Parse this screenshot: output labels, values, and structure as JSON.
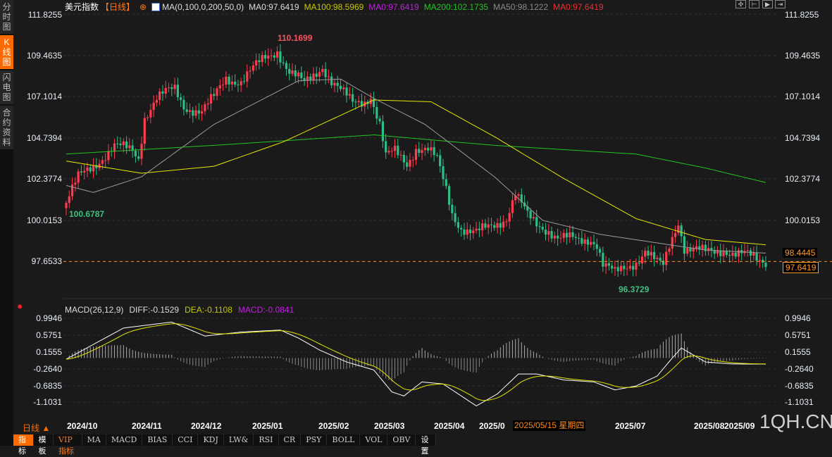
{
  "sidebar": {
    "tabs": [
      {
        "label": "分时图"
      },
      {
        "label": "K线图"
      },
      {
        "label": "闪电图"
      },
      {
        "label": "合约资料"
      }
    ]
  },
  "header": {
    "title": "美元指数",
    "period": "【日线】",
    "ma_params": "MA(0,100,0,200,50,0)",
    "ma0a": "MA0:97.6419",
    "ma100": "MA100:98.5969",
    "ma0b": "MA0:97.6419",
    "ma200": "MA200:102.1735",
    "ma50": "MA50:98.1222",
    "ma0c": "MA0:97.6419"
  },
  "colors": {
    "up": "#ff3b4e",
    "down": "#2ebd85",
    "ma100": "#e6e600",
    "ma200": "#22c422",
    "ma50": "#9a9a9a",
    "accent": "#ff6a00"
  },
  "price_axis": [
    "111.8255",
    "109.4635",
    "107.1014",
    "104.7394",
    "102.3774",
    "100.0153",
    "97.6533"
  ],
  "price_tags": {
    "ma_value": "98.4445",
    "last": "97.6419"
  },
  "macd": {
    "title": "MACD(26,12,9)",
    "diff": "DIFF:-0.1529",
    "dea": "DEA:-0.1108",
    "macd": "MACD:-0.0841",
    "axis": [
      "0.9946",
      "0.5751",
      "0.1555",
      "-0.2640",
      "-0.6835",
      "-1.1031"
    ]
  },
  "dates": [
    "2024/10",
    "2024/11",
    "2024/12",
    "2025/01",
    "2025/02",
    "2025/03",
    "2025/04",
    "2025/0",
    "2025/07",
    "2025/08",
    "2025/09"
  ],
  "crosshair_label": "2025/05/15 星期四",
  "period_label": "日线 ▲",
  "watermark": "1QH.CN",
  "toolbar": [
    "指标",
    "模板",
    "VIP指标",
    "MA",
    "MACD",
    "BIAS",
    "CCI",
    "KDJ",
    "LW&",
    "RSI",
    "CR",
    "PSY",
    "BOLL",
    "VOL",
    "OBV",
    "设置"
  ],
  "chart_data": {
    "type": "candlestick",
    "title": "美元指数 日线",
    "ylim": [
      96.0,
      111.8255
    ],
    "annotations": {
      "high": "110.1699",
      "low_left": "100.6787",
      "low": "96.3729"
    },
    "close_anchors": [
      [
        0,
        101.0
      ],
      [
        4,
        102.4
      ],
      [
        11,
        103.5
      ],
      [
        16,
        104.2
      ],
      [
        22,
        104.0
      ],
      [
        24,
        103.6
      ],
      [
        26,
        106.0
      ],
      [
        30,
        107.0
      ],
      [
        36,
        107.5
      ],
      [
        39,
        106.6
      ],
      [
        45,
        106.2
      ],
      [
        49,
        107.0
      ],
      [
        53,
        108.2
      ],
      [
        58,
        108.0
      ],
      [
        63,
        108.8
      ],
      [
        66,
        109.3
      ],
      [
        70,
        109.8
      ],
      [
        74,
        108.5
      ],
      [
        79,
        107.8
      ],
      [
        82,
        108.3
      ],
      [
        85,
        108.9
      ],
      [
        88,
        108.0
      ],
      [
        92,
        107.2
      ],
      [
        95,
        106.7
      ],
      [
        99,
        106.9
      ],
      [
        101,
        107.2
      ],
      [
        104,
        105.5
      ],
      [
        106,
        103.6
      ],
      [
        109,
        103.9
      ],
      [
        113,
        103.3
      ],
      [
        116,
        104.2
      ],
      [
        120,
        104.0
      ],
      [
        123,
        103.4
      ],
      [
        126,
        101.8
      ],
      [
        128,
        100.5
      ],
      [
        131,
        99.6
      ],
      [
        134,
        99.3
      ],
      [
        136,
        99.2
      ],
      [
        140,
        99.6
      ],
      [
        142,
        99.8
      ],
      [
        146,
        100.2
      ],
      [
        149,
        101.5
      ],
      [
        153,
        100.2
      ],
      [
        156,
        99.8
      ],
      [
        160,
        99.5
      ],
      [
        163,
        99.0
      ],
      [
        167,
        98.9
      ],
      [
        170,
        98.8
      ],
      [
        174,
        99.0
      ],
      [
        176,
        98.7
      ],
      [
        178,
        97.5
      ],
      [
        182,
        96.9
      ],
      [
        185,
        97.2
      ],
      [
        189,
        97.7
      ],
      [
        192,
        98.3
      ],
      [
        196,
        97.5
      ],
      [
        198,
        97.3
      ],
      [
        200,
        98.5
      ],
      [
        203,
        100.0
      ],
      [
        205,
        98.5
      ],
      [
        209,
        98.3
      ],
      [
        212,
        98.1
      ],
      [
        216,
        98.2
      ],
      [
        218,
        98.4
      ],
      [
        221,
        98.2
      ],
      [
        225,
        98.0
      ],
      [
        229,
        97.7
      ],
      [
        232,
        97.64
      ]
    ],
    "ma50_anchors": [
      [
        0,
        102.0
      ],
      [
        9,
        101.6
      ],
      [
        25,
        102.5
      ],
      [
        49,
        105.5
      ],
      [
        77,
        108.0
      ],
      [
        91,
        108.1
      ],
      [
        102,
        107.0
      ],
      [
        119,
        105.5
      ],
      [
        142,
        102.5
      ],
      [
        158,
        100.0
      ],
      [
        177,
        99.2
      ],
      [
        200,
        98.6
      ],
      [
        212,
        98.3
      ],
      [
        232,
        98.12
      ]
    ],
    "ma100_anchors": [
      [
        0,
        103.4
      ],
      [
        25,
        102.7
      ],
      [
        49,
        103.1
      ],
      [
        72,
        104.5
      ],
      [
        102,
        106.9
      ],
      [
        121,
        106.8
      ],
      [
        142,
        104.8
      ],
      [
        165,
        102.4
      ],
      [
        189,
        100.1
      ],
      [
        212,
        98.9
      ],
      [
        232,
        98.6
      ]
    ],
    "ma200_anchors": [
      [
        0,
        103.8
      ],
      [
        49,
        104.3
      ],
      [
        102,
        104.9
      ],
      [
        142,
        104.3
      ],
      [
        189,
        103.8
      ],
      [
        212,
        103.0
      ],
      [
        232,
        102.17
      ]
    ],
    "diff_anchors": [
      [
        0,
        -0.03
      ],
      [
        19,
        0.75
      ],
      [
        35,
        0.9
      ],
      [
        46,
        0.55
      ],
      [
        58,
        0.65
      ],
      [
        71,
        0.7
      ],
      [
        77,
        0.5
      ],
      [
        84,
        0.2
      ],
      [
        93,
        -0.1
      ],
      [
        102,
        -0.3
      ],
      [
        108,
        -0.85
      ],
      [
        112,
        -0.95
      ],
      [
        118,
        -0.6
      ],
      [
        125,
        -0.65
      ],
      [
        136,
        -1.2
      ],
      [
        143,
        -0.9
      ],
      [
        150,
        -0.4
      ],
      [
        156,
        -0.4
      ],
      [
        165,
        -0.55
      ],
      [
        175,
        -0.6
      ],
      [
        182,
        -0.8
      ],
      [
        189,
        -0.7
      ],
      [
        196,
        -0.45
      ],
      [
        201,
        0.0
      ],
      [
        204,
        0.25
      ],
      [
        212,
        -0.1
      ],
      [
        221,
        -0.15
      ],
      [
        232,
        -0.153
      ]
    ]
  }
}
